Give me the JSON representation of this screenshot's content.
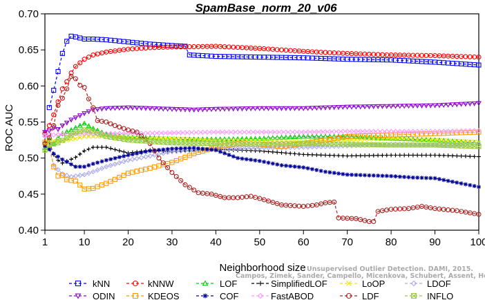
{
  "chart_data": {
    "type": "line",
    "title": "SpamBase_norm_20_v06",
    "xlabel": "Neighborhood size",
    "ylabel": "ROC AUC",
    "xlim": [
      1,
      100
    ],
    "ylim": [
      0.4,
      0.7
    ],
    "x_ticks": [
      1,
      10,
      20,
      30,
      40,
      50,
      60,
      70,
      80,
      90,
      100
    ],
    "y_ticks": [
      "0.40",
      "0.45",
      "0.50",
      "0.55",
      "0.60",
      "0.65",
      "0.70"
    ],
    "x_tick_labels": [
      "1",
      "10",
      "20",
      "30",
      "40",
      "50",
      "60",
      "70",
      "80",
      "90",
      "100"
    ],
    "grid": false,
    "legend_position": "bottom",
    "series": [
      {
        "name": "kNN",
        "color": "#0000ff",
        "marker": "square",
        "line": "dashed",
        "points": [
          [
            2,
            0.57
          ],
          [
            3,
            0.594
          ],
          [
            4,
            0.62
          ],
          [
            5,
            0.645
          ],
          [
            6,
            0.662
          ],
          [
            7,
            0.669
          ],
          [
            8,
            0.668
          ],
          [
            10,
            0.665
          ],
          [
            12,
            0.665
          ],
          [
            15,
            0.664
          ],
          [
            20,
            0.661
          ],
          [
            25,
            0.658
          ],
          [
            30,
            0.656
          ],
          [
            33,
            0.655
          ],
          [
            34,
            0.643
          ],
          [
            40,
            0.641
          ],
          [
            50,
            0.64
          ],
          [
            60,
            0.639
          ],
          [
            70,
            0.637
          ],
          [
            80,
            0.636
          ],
          [
            90,
            0.633
          ],
          [
            100,
            0.629
          ]
        ]
      },
      {
        "name": "kNNW",
        "color": "#ff0000",
        "marker": "circle",
        "line": "dashed",
        "points": [
          [
            1,
            0.534
          ],
          [
            2,
            0.545
          ],
          [
            3,
            0.56
          ],
          [
            4,
            0.578
          ],
          [
            5,
            0.596
          ],
          [
            6,
            0.606
          ],
          [
            7,
            0.618
          ],
          [
            8,
            0.627
          ],
          [
            10,
            0.637
          ],
          [
            12,
            0.643
          ],
          [
            15,
            0.647
          ],
          [
            20,
            0.651
          ],
          [
            25,
            0.653
          ],
          [
            30,
            0.654
          ],
          [
            40,
            0.655
          ],
          [
            50,
            0.652
          ],
          [
            60,
            0.648
          ],
          [
            70,
            0.645
          ],
          [
            80,
            0.643
          ],
          [
            90,
            0.642
          ],
          [
            100,
            0.64
          ]
        ]
      },
      {
        "name": "LOF",
        "color": "#00cc00",
        "marker": "triangle",
        "line": "dashed",
        "points": [
          [
            1,
            0.514
          ],
          [
            2,
            0.527
          ],
          [
            3,
            0.52
          ],
          [
            4,
            0.528
          ],
          [
            5,
            0.534
          ],
          [
            7,
            0.539
          ],
          [
            9,
            0.545
          ],
          [
            10,
            0.548
          ],
          [
            12,
            0.541
          ],
          [
            15,
            0.533
          ],
          [
            20,
            0.529
          ],
          [
            25,
            0.528
          ],
          [
            30,
            0.526
          ],
          [
            40,
            0.526
          ],
          [
            50,
            0.527
          ],
          [
            60,
            0.53
          ],
          [
            70,
            0.53
          ],
          [
            80,
            0.527
          ],
          [
            90,
            0.525
          ],
          [
            100,
            0.521
          ]
        ]
      },
      {
        "name": "SimplifiedLOF",
        "color": "#000000",
        "marker": "plus",
        "line": "dashed",
        "points": [
          [
            1,
            0.521
          ],
          [
            2,
            0.522
          ],
          [
            3,
            0.505
          ],
          [
            4,
            0.497
          ],
          [
            5,
            0.493
          ],
          [
            8,
            0.501
          ],
          [
            10,
            0.51
          ],
          [
            12,
            0.515
          ],
          [
            15,
            0.515
          ],
          [
            20,
            0.507
          ],
          [
            25,
            0.511
          ],
          [
            30,
            0.509
          ],
          [
            40,
            0.512
          ],
          [
            50,
            0.51
          ],
          [
            60,
            0.505
          ],
          [
            70,
            0.503
          ],
          [
            80,
            0.504
          ],
          [
            90,
            0.504
          ],
          [
            100,
            0.502
          ]
        ]
      },
      {
        "name": "LoOP",
        "color": "#e6e600",
        "marker": "x",
        "line": "dashed",
        "points": [
          [
            1,
            0.52
          ],
          [
            2,
            0.524
          ],
          [
            5,
            0.524
          ],
          [
            8,
            0.527
          ],
          [
            10,
            0.53
          ],
          [
            15,
            0.53
          ],
          [
            20,
            0.528
          ],
          [
            30,
            0.527
          ],
          [
            40,
            0.524
          ],
          [
            50,
            0.524
          ],
          [
            60,
            0.523
          ],
          [
            70,
            0.525
          ],
          [
            80,
            0.527
          ],
          [
            90,
            0.525
          ],
          [
            100,
            0.522
          ]
        ]
      },
      {
        "name": "LDOF",
        "color": "#aaaaee",
        "marker": "diamond",
        "line": "dashed",
        "points": [
          [
            1,
            0.53
          ],
          [
            2,
            0.513
          ],
          [
            3,
            0.49
          ],
          [
            5,
            0.478
          ],
          [
            7,
            0.474
          ],
          [
            10,
            0.477
          ],
          [
            12,
            0.481
          ],
          [
            15,
            0.488
          ],
          [
            20,
            0.497
          ],
          [
            25,
            0.503
          ],
          [
            30,
            0.509
          ],
          [
            40,
            0.513
          ],
          [
            50,
            0.514
          ],
          [
            60,
            0.515
          ],
          [
            70,
            0.517
          ],
          [
            80,
            0.519
          ],
          [
            90,
            0.518
          ],
          [
            100,
            0.519
          ]
        ]
      },
      {
        "name": "ODIN",
        "color": "#8800cc",
        "marker": "triangle-down",
        "line": "dashed",
        "points": [
          [
            1,
            0.536
          ],
          [
            2,
            0.538
          ],
          [
            3,
            0.542
          ],
          [
            4,
            0.54
          ],
          [
            5,
            0.545
          ],
          [
            7,
            0.553
          ],
          [
            10,
            0.562
          ],
          [
            12,
            0.567
          ],
          [
            15,
            0.569
          ],
          [
            20,
            0.57
          ],
          [
            25,
            0.569
          ],
          [
            30,
            0.568
          ],
          [
            35,
            0.567
          ],
          [
            40,
            0.568
          ],
          [
            50,
            0.569
          ],
          [
            60,
            0.569
          ],
          [
            70,
            0.571
          ],
          [
            80,
            0.572
          ],
          [
            90,
            0.573
          ],
          [
            100,
            0.576
          ]
        ]
      },
      {
        "name": "KDEOS",
        "color": "#ff9900",
        "marker": "square",
        "line": "dashed",
        "points": [
          [
            1,
            0.522
          ],
          [
            2,
            0.519
          ],
          [
            3,
            0.488
          ],
          [
            4,
            0.475
          ],
          [
            5,
            0.476
          ],
          [
            6,
            0.47
          ],
          [
            8,
            0.468
          ],
          [
            10,
            0.457
          ],
          [
            12,
            0.458
          ],
          [
            15,
            0.465
          ],
          [
            20,
            0.479
          ],
          [
            25,
            0.486
          ],
          [
            30,
            0.494
          ],
          [
            35,
            0.506
          ],
          [
            40,
            0.515
          ],
          [
            45,
            0.52
          ],
          [
            50,
            0.519
          ],
          [
            55,
            0.516
          ],
          [
            60,
            0.52
          ],
          [
            65,
            0.525
          ],
          [
            70,
            0.53
          ],
          [
            80,
            0.532
          ],
          [
            90,
            0.534
          ],
          [
            100,
            0.536
          ]
        ]
      },
      {
        "name": "COF",
        "color": "#000099",
        "marker": "star",
        "line": "dashed",
        "points": [
          [
            1,
            0.516
          ],
          [
            2,
            0.512
          ],
          [
            3,
            0.506
          ],
          [
            5,
            0.498
          ],
          [
            8,
            0.488
          ],
          [
            10,
            0.488
          ],
          [
            12,
            0.492
          ],
          [
            15,
            0.497
          ],
          [
            20,
            0.504
          ],
          [
            25,
            0.51
          ],
          [
            30,
            0.513
          ],
          [
            35,
            0.514
          ],
          [
            40,
            0.511
          ],
          [
            45,
            0.5
          ],
          [
            50,
            0.496
          ],
          [
            55,
            0.49
          ],
          [
            60,
            0.487
          ],
          [
            65,
            0.481
          ],
          [
            70,
            0.477
          ],
          [
            75,
            0.476
          ],
          [
            80,
            0.475
          ],
          [
            85,
            0.473
          ],
          [
            90,
            0.472
          ],
          [
            95,
            0.466
          ],
          [
            100,
            0.46
          ]
        ]
      },
      {
        "name": "FastABOD",
        "color": "#ff99ff",
        "marker": "diamond",
        "line": "dashed",
        "points": [
          [
            1,
            0.531
          ],
          [
            5,
            0.533
          ],
          [
            10,
            0.534
          ],
          [
            15,
            0.534
          ],
          [
            20,
            0.534
          ],
          [
            30,
            0.535
          ],
          [
            40,
            0.536
          ],
          [
            50,
            0.536
          ],
          [
            60,
            0.536
          ],
          [
            70,
            0.537
          ],
          [
            80,
            0.537
          ],
          [
            90,
            0.537
          ],
          [
            100,
            0.538
          ]
        ]
      },
      {
        "name": "LDF",
        "color": "#aa2222",
        "marker": "circle",
        "line": "dashed",
        "points": [
          [
            1,
            0.52
          ],
          [
            2,
            0.528
          ],
          [
            3,
            0.545
          ],
          [
            4,
            0.573
          ],
          [
            5,
            0.583
          ],
          [
            6,
            0.596
          ],
          [
            7,
            0.613
          ],
          [
            8,
            0.61
          ],
          [
            9,
            0.601
          ],
          [
            10,
            0.598
          ],
          [
            11,
            0.582
          ],
          [
            12,
            0.57
          ],
          [
            13,
            0.552
          ],
          [
            15,
            0.55
          ],
          [
            17,
            0.545
          ],
          [
            20,
            0.539
          ],
          [
            22,
            0.536
          ],
          [
            25,
            0.52
          ],
          [
            27,
            0.5
          ],
          [
            30,
            0.48
          ],
          [
            33,
            0.463
          ],
          [
            36,
            0.452
          ],
          [
            39,
            0.45
          ],
          [
            42,
            0.445
          ],
          [
            45,
            0.445
          ],
          [
            48,
            0.447
          ],
          [
            50,
            0.444
          ],
          [
            55,
            0.435
          ],
          [
            60,
            0.433
          ],
          [
            63,
            0.435
          ],
          [
            65,
            0.438
          ],
          [
            67,
            0.439
          ],
          [
            68,
            0.417
          ],
          [
            72,
            0.416
          ],
          [
            75,
            0.412
          ],
          [
            76,
            0.412
          ],
          [
            77,
            0.426
          ],
          [
            80,
            0.429
          ],
          [
            84,
            0.43
          ],
          [
            87,
            0.433
          ],
          [
            90,
            0.43
          ],
          [
            95,
            0.427
          ],
          [
            100,
            0.422
          ]
        ]
      },
      {
        "name": "INFLO",
        "color": "#99cc44",
        "marker": "square-x",
        "line": "dashed",
        "points": [
          [
            1,
            0.511
          ],
          [
            2,
            0.518
          ],
          [
            4,
            0.521
          ],
          [
            6,
            0.528
          ],
          [
            8,
            0.535
          ],
          [
            10,
            0.539
          ],
          [
            12,
            0.537
          ],
          [
            15,
            0.53
          ],
          [
            20,
            0.525
          ],
          [
            30,
            0.521
          ],
          [
            40,
            0.52
          ],
          [
            50,
            0.519
          ],
          [
            60,
            0.52
          ],
          [
            70,
            0.519
          ],
          [
            80,
            0.518
          ],
          [
            90,
            0.518
          ],
          [
            100,
            0.516
          ]
        ]
      }
    ]
  },
  "watermark": {
    "line1": "Unsupervised Outlier Detection. DAMI, 2015.",
    "line2": "Campos, Zimek, Sander, Campello, Micenkova, Schubert, Assent, Houle"
  }
}
